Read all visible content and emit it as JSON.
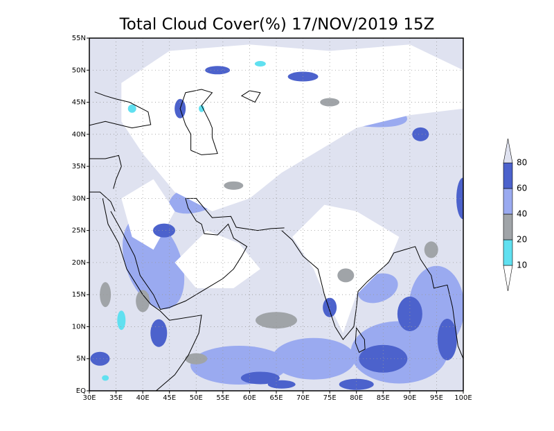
{
  "title": "Total Cloud Cover(%) 17/NOV/2019 15Z",
  "lon_range": [
    30,
    100
  ],
  "lat_range": [
    0,
    55
  ],
  "lon_ticks": [
    {
      "value": 30,
      "label": "30E"
    },
    {
      "value": 35,
      "label": "35E"
    },
    {
      "value": 40,
      "label": "40E"
    },
    {
      "value": 45,
      "label": "45E"
    },
    {
      "value": 50,
      "label": "50E"
    },
    {
      "value": 55,
      "label": "55E"
    },
    {
      "value": 60,
      "label": "60E"
    },
    {
      "value": 65,
      "label": "65E"
    },
    {
      "value": 70,
      "label": "70E"
    },
    {
      "value": 75,
      "label": "75E"
    },
    {
      "value": 80,
      "label": "80E"
    },
    {
      "value": 85,
      "label": "85E"
    },
    {
      "value": 90,
      "label": "90E"
    },
    {
      "value": 95,
      "label": "95E"
    },
    {
      "value": 100,
      "label": "100E"
    }
  ],
  "lat_ticks": [
    {
      "value": 0,
      "label": "EQ"
    },
    {
      "value": 5,
      "label": "5N"
    },
    {
      "value": 10,
      "label": "10N"
    },
    {
      "value": 15,
      "label": "15N"
    },
    {
      "value": 20,
      "label": "20N"
    },
    {
      "value": 25,
      "label": "25N"
    },
    {
      "value": 30,
      "label": "30N"
    },
    {
      "value": 35,
      "label": "35N"
    },
    {
      "value": 40,
      "label": "40N"
    },
    {
      "value": 45,
      "label": "45N"
    },
    {
      "value": 50,
      "label": "50N"
    },
    {
      "value": 55,
      "label": "55N"
    }
  ],
  "grid": true,
  "legend": {
    "levels": [
      10,
      20,
      40,
      60,
      80
    ],
    "colors": [
      "#ffffff",
      "#60e0f0",
      "#a0a4a8",
      "#9aaaf0",
      "#4c62cc",
      "#dfe2f0"
    ]
  }
}
